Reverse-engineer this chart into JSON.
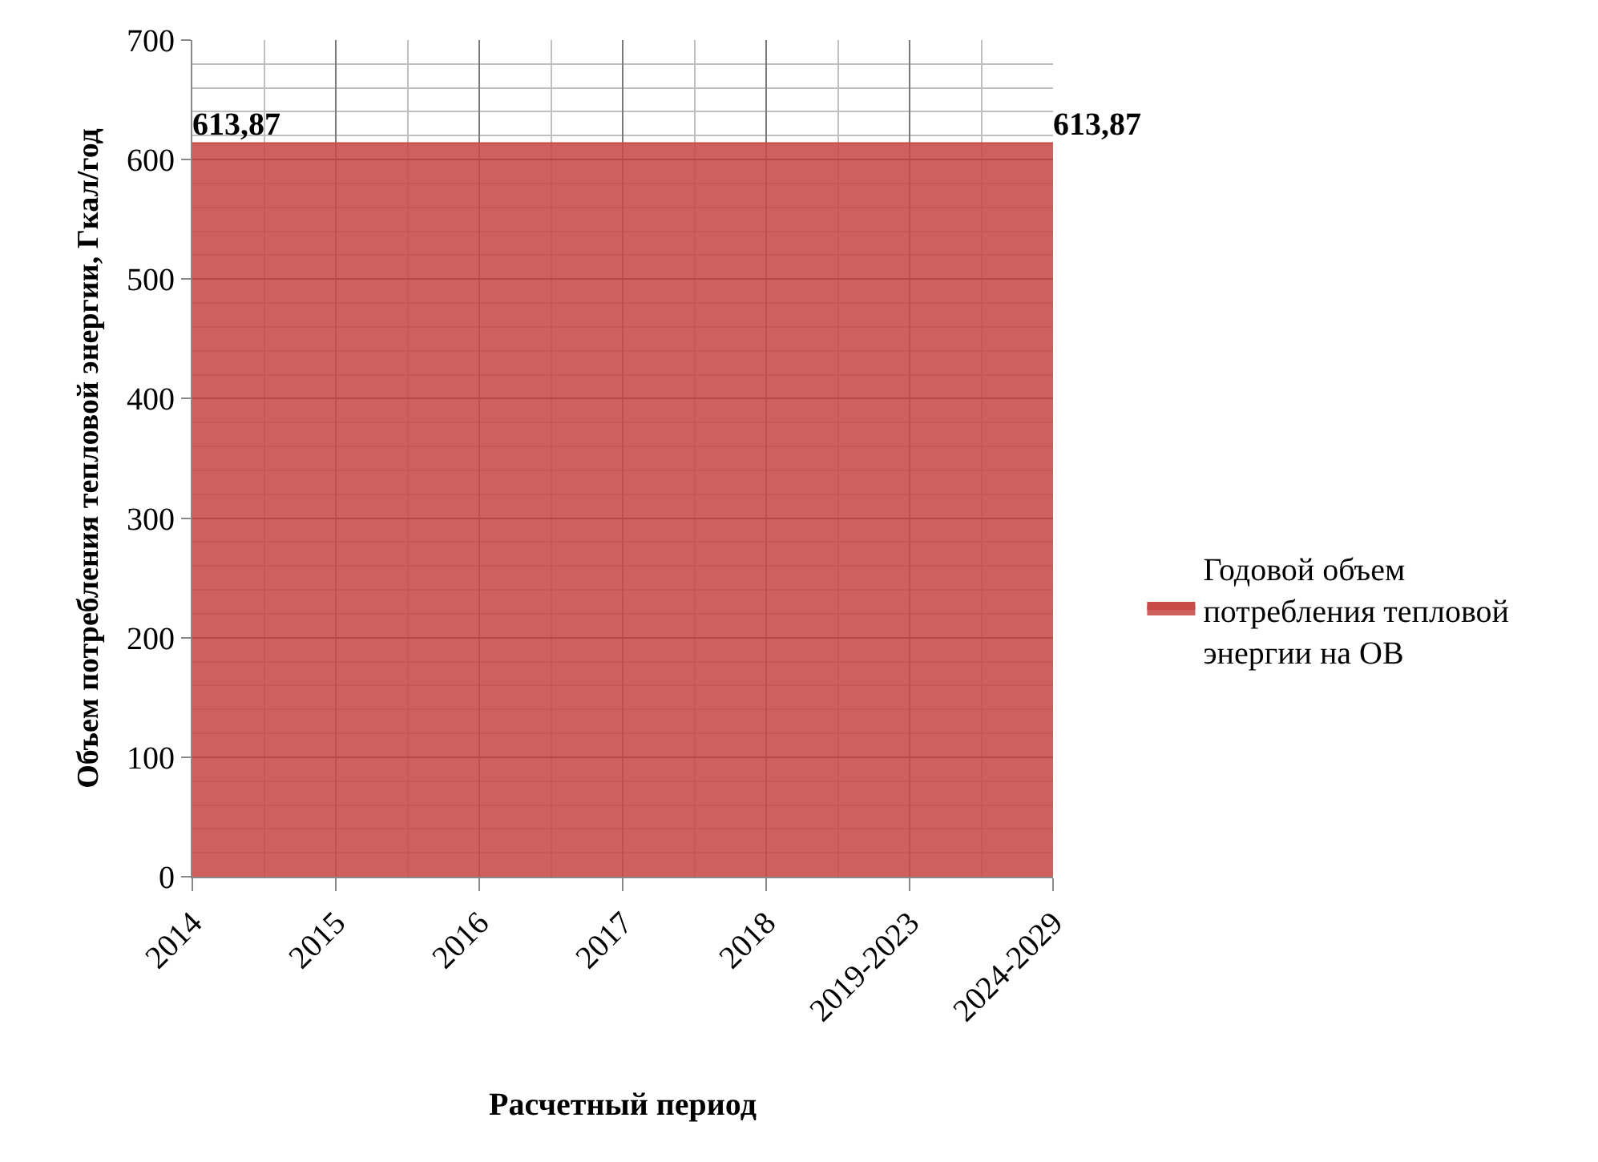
{
  "chart_data": {
    "type": "area",
    "xlabel": "Расчетный период",
    "ylabel": "Объем потребления тепловой энергии, Гкал/год",
    "categories": [
      "2014",
      "2015",
      "2016",
      "2017",
      "2018",
      "2019-2023",
      "2024-2029"
    ],
    "series": [
      {
        "name": "Годовой объем потребления тепловой энергии на ОВ",
        "color": "#c94a47",
        "values": [
          613.87,
          613.87,
          613.87,
          613.87,
          613.87,
          613.87,
          613.87
        ],
        "value_labels": [
          "613,87",
          null,
          null,
          null,
          null,
          null,
          "613,87"
        ]
      }
    ],
    "ylim": [
      0,
      700
    ],
    "yticks": [
      0,
      100,
      200,
      300,
      400,
      500,
      600,
      700
    ],
    "grid": true,
    "legend": "right"
  }
}
